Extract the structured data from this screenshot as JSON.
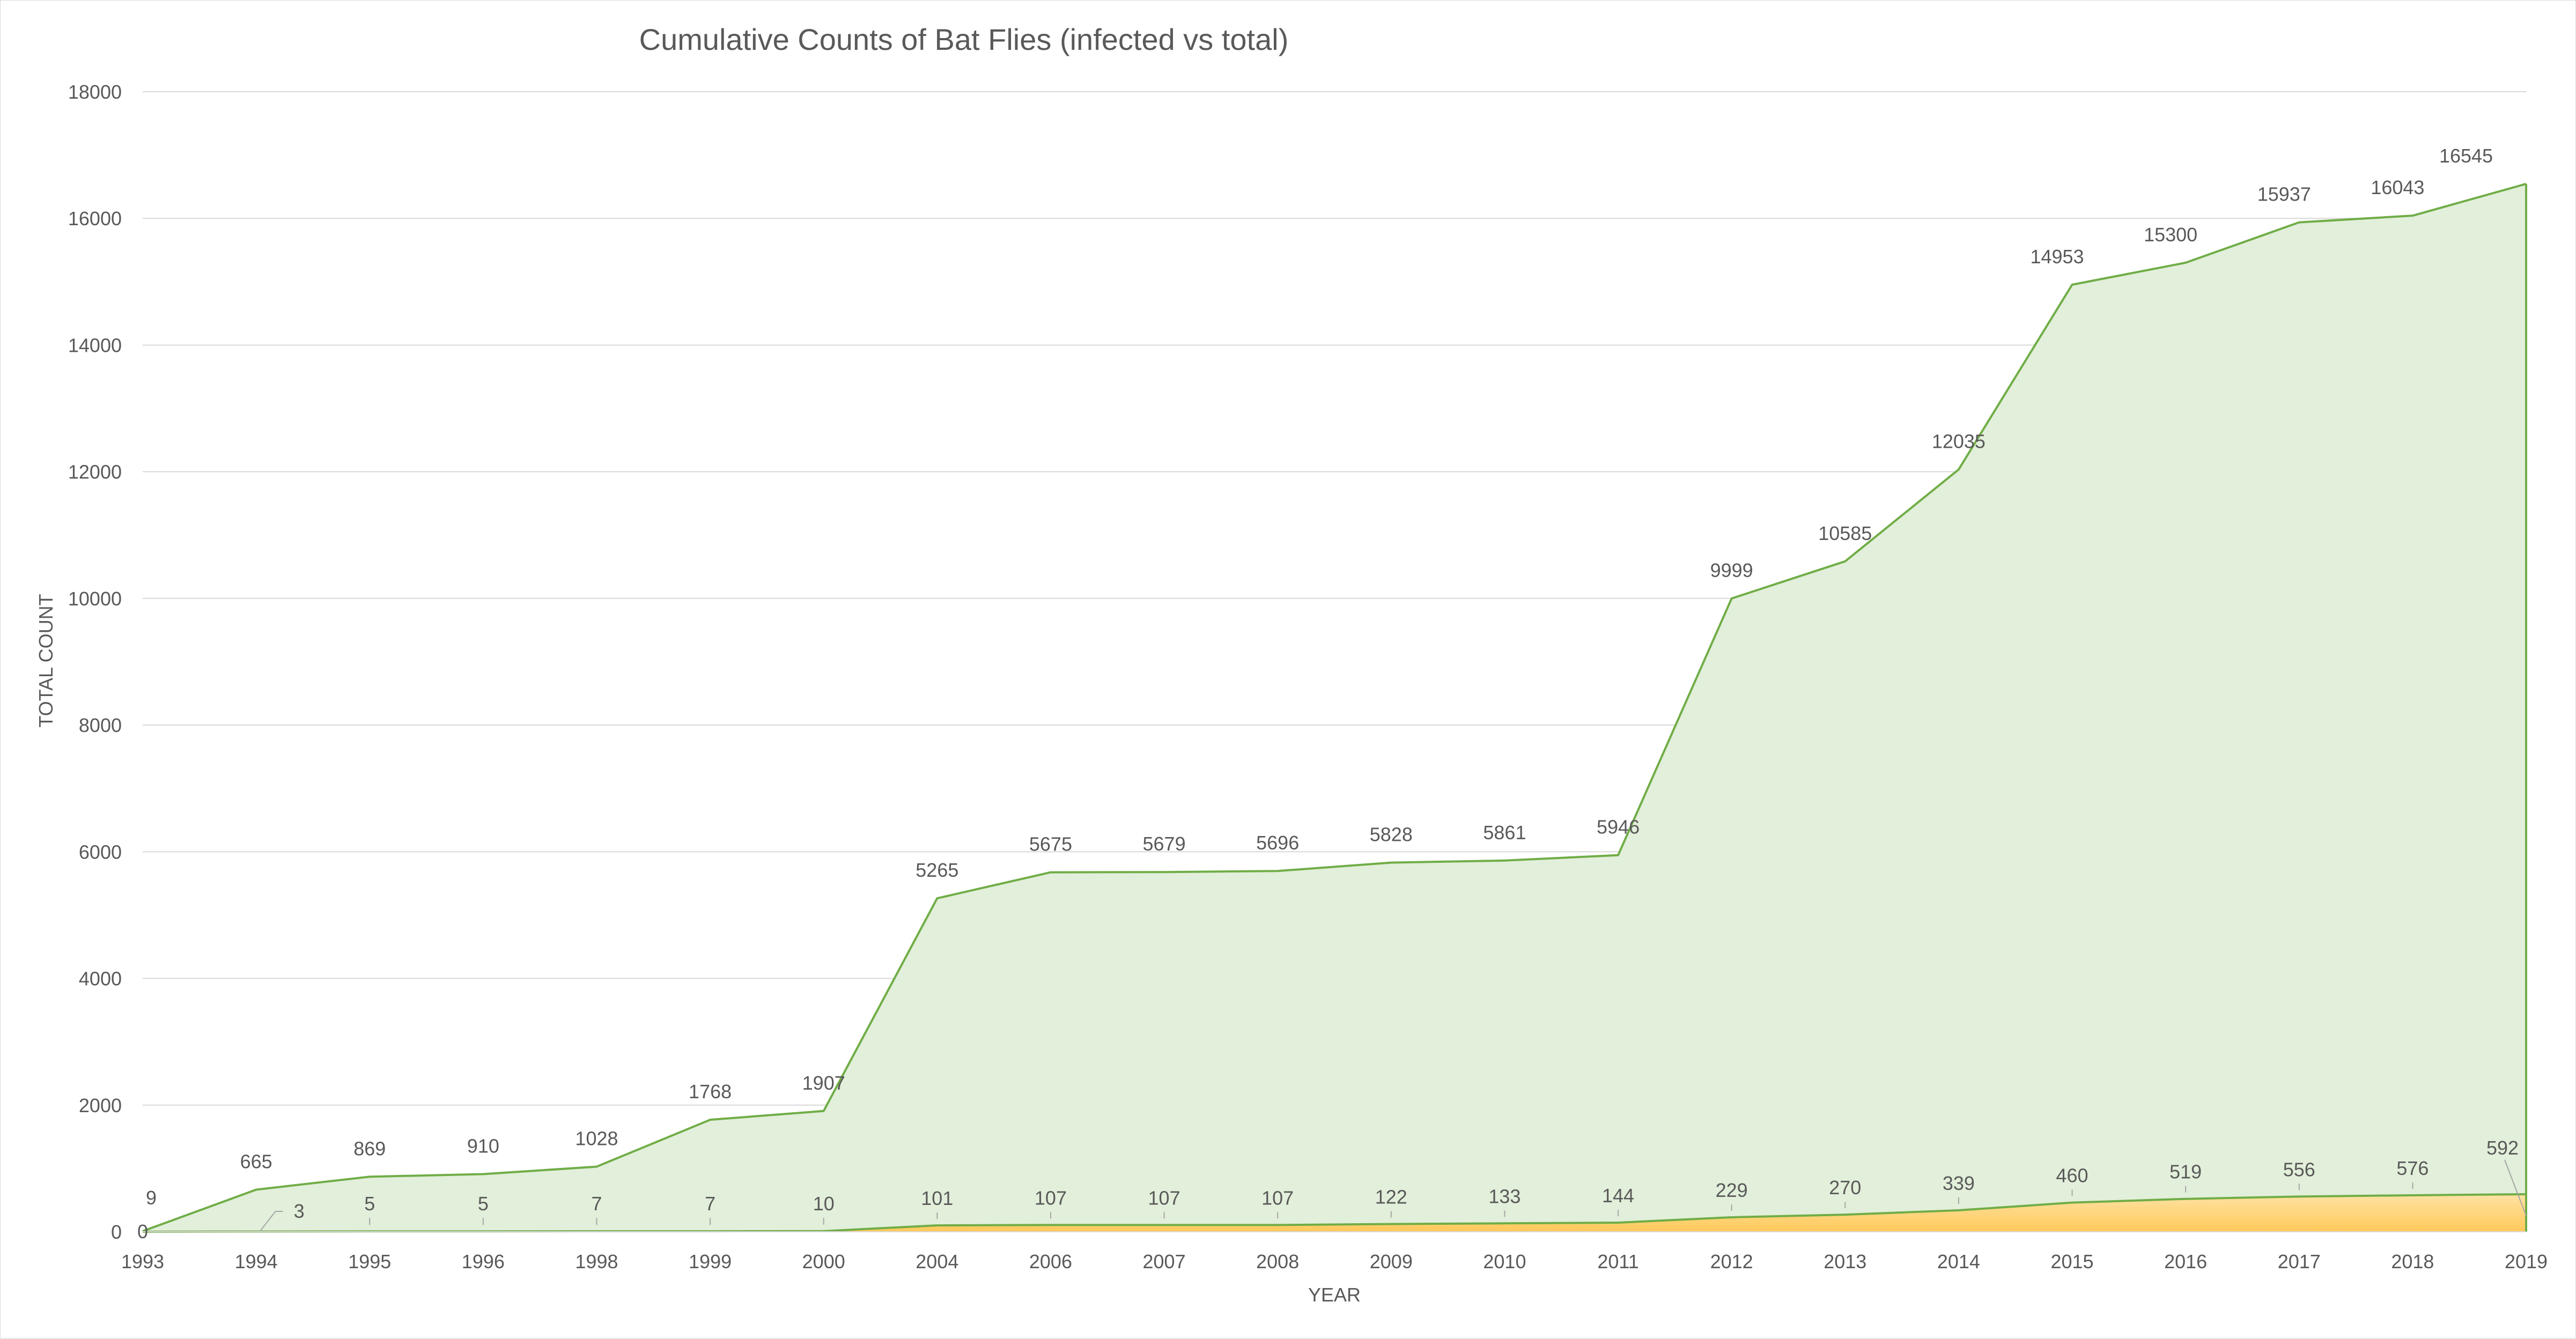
{
  "chart_data": {
    "type": "area",
    "title": "Cumulative Counts of Bat Flies (infected vs total)",
    "xlabel": "YEAR",
    "ylabel": "TOTAL COUNT",
    "ylim": [
      0,
      18000
    ],
    "yticks": [
      0,
      2000,
      4000,
      6000,
      8000,
      10000,
      12000,
      14000,
      16000,
      18000
    ],
    "grid": true,
    "legend": "none",
    "categories": [
      "1993",
      "1994",
      "1995",
      "1996",
      "1998",
      "1999",
      "2000",
      "2004",
      "2006",
      "2007",
      "2008",
      "2009",
      "2010",
      "2011",
      "2012",
      "2013",
      "2014",
      "2015",
      "2016",
      "2017",
      "2018",
      "2019"
    ],
    "series": [
      {
        "values": [
          9,
          665,
          869,
          910,
          1028,
          1768,
          1907,
          5265,
          5675,
          5679,
          5696,
          5828,
          5861,
          5946,
          9999,
          10585,
          12035,
          14953,
          15300,
          15937,
          16043,
          16545
        ],
        "labels": [
          "9",
          "665",
          "869",
          "910",
          "1028",
          "1768",
          "1907",
          "5265",
          "5675",
          "5679",
          "5696",
          "5828",
          "5861",
          "5946",
          "9999",
          "10585",
          "12035",
          "14953",
          "15300",
          "15937",
          "16043",
          "16545"
        ],
        "fill": "#e2efda",
        "line": "#70ad47"
      },
      {
        "values": [
          0,
          3,
          5,
          5,
          7,
          7,
          10,
          101,
          107,
          107,
          107,
          122,
          133,
          144,
          229,
          270,
          339,
          460,
          519,
          556,
          576,
          592
        ],
        "labels": [
          "0",
          "3",
          "5",
          "5",
          "7",
          "7",
          "10",
          "101",
          "107",
          "107",
          "107",
          "122",
          "133",
          "144",
          "229",
          "270",
          "339",
          "460",
          "519",
          "556",
          "576",
          "592"
        ],
        "fill": "#ffd580",
        "line": "#70ad47"
      }
    ]
  }
}
